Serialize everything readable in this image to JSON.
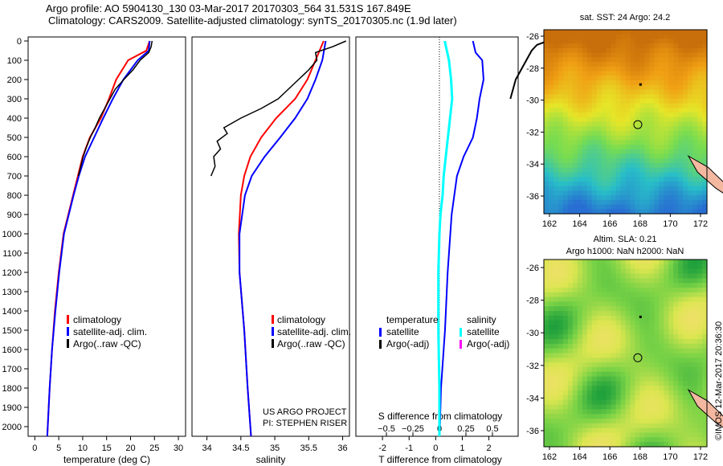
{
  "title_line1": "Argo profile: AO 5904130_130 03-Mar-2017 20170303_564 31.531S 167.849E",
  "title_line2": "Climatology: CARS2009. Satellite-adjusted climatology: synTS_20170305.nc (1.9d later)",
  "credit": "©IMOS 12-Mar-2017 20:36:30",
  "colors": {
    "climatology": "#ff0000",
    "satellite": "#0000ff",
    "argo": "#000000",
    "sal_sat": "#00ffff",
    "sal_argo": "#ff00ff"
  },
  "chart_data": [
    {
      "type": "line",
      "name": "temperature",
      "xlabel": "temperature (deg C)",
      "xlim": [
        -1.4,
        31.5
      ],
      "ylim": [
        2050,
        0
      ],
      "xticks": [
        0,
        5,
        10,
        15,
        20,
        25,
        30
      ],
      "yticks": [
        0,
        100,
        200,
        300,
        400,
        500,
        600,
        700,
        800,
        900,
        1000,
        1100,
        1200,
        1300,
        1400,
        1500,
        1600,
        1700,
        1800,
        1900,
        2000
      ],
      "legend": [
        "climatology",
        "satellite-adj. clim.",
        "Argo(..raw -QC)"
      ],
      "series": [
        {
          "name": "climatology",
          "depth": [
            0,
            50,
            100,
            200,
            300,
            400,
            500,
            600,
            700,
            800,
            900,
            1000,
            1200,
            1400,
            1600,
            1800,
            2050
          ],
          "values": [
            24,
            23.3,
            19.5,
            17,
            15.5,
            13.8,
            11.5,
            10,
            9,
            8,
            7,
            6,
            5,
            4.2,
            3.6,
            3.1,
            2.6
          ]
        },
        {
          "name": "satellite",
          "depth": [
            0,
            50,
            100,
            200,
            300,
            400,
            500,
            600,
            700,
            800,
            900,
            1000,
            1200,
            1400,
            1600,
            1800,
            2050
          ],
          "values": [
            24,
            23.8,
            21.5,
            18.5,
            16.3,
            14.3,
            12.4,
            10.5,
            9.2,
            8.1,
            7.1,
            6.1,
            5.1,
            4.3,
            3.6,
            3.1,
            2.6
          ]
        },
        {
          "name": "argo",
          "depth": [
            0,
            30,
            60,
            100,
            150,
            200,
            250,
            300,
            350,
            400,
            450,
            500,
            550,
            600,
            650,
            700
          ],
          "values": [
            24.5,
            24.3,
            23.8,
            22,
            20.5,
            18.6,
            16.8,
            15.7,
            14.6,
            13.5,
            12.6,
            11.6,
            10.8,
            10.1,
            9.6,
            9.1
          ]
        }
      ]
    },
    {
      "type": "line",
      "name": "salinity",
      "xlabel": "salinity",
      "xlim": [
        33.78,
        36.1
      ],
      "ylim": [
        2050,
        0
      ],
      "xticks": [
        34,
        34.5,
        35,
        35.5,
        36
      ],
      "legend": [
        "climatology",
        "satellite-adj. clim.",
        "Argo(..raw -QC)"
      ],
      "annotation": [
        "US ARGO PROJECT",
        "PI: STEPHEN RISER"
      ],
      "series": [
        {
          "name": "climatology",
          "depth": [
            0,
            100,
            200,
            300,
            400,
            500,
            600,
            700,
            800,
            1000,
            1200,
            1500,
            1800,
            2050
          ],
          "values": [
            35.72,
            35.6,
            35.48,
            35.3,
            35.02,
            34.8,
            34.64,
            34.55,
            34.5,
            34.47,
            34.48,
            34.55,
            34.6,
            34.65
          ]
        },
        {
          "name": "satellite",
          "depth": [
            0,
            100,
            200,
            300,
            400,
            500,
            600,
            700,
            800,
            1000,
            1200,
            1500,
            1800,
            2050
          ],
          "values": [
            35.75,
            35.7,
            35.6,
            35.48,
            35.3,
            35.08,
            34.85,
            34.66,
            34.56,
            34.48,
            34.48,
            34.55,
            34.6,
            34.65
          ]
        },
        {
          "name": "argo",
          "depth": [
            0,
            30,
            60,
            100,
            150,
            200,
            250,
            300,
            350,
            400,
            450,
            480,
            520,
            560,
            600,
            650,
            700
          ],
          "values": [
            36.05,
            35.85,
            35.6,
            35.62,
            35.5,
            35.35,
            35.2,
            35.05,
            34.8,
            34.5,
            34.25,
            34.3,
            34.15,
            34.2,
            34.1,
            34.12,
            34.06
          ]
        }
      ]
    },
    {
      "type": "line",
      "name": "difference",
      "xlabel": "T difference from climatology",
      "xlabel2": "S difference from climatology",
      "xlim": [
        -3.0,
        3.1
      ],
      "ylim": [
        2050,
        0
      ],
      "xticks": [
        -2,
        -1,
        0,
        1,
        2
      ],
      "xticks_s": [
        -0.5,
        -0.25,
        0,
        0.25,
        0.5
      ],
      "legend_headers": [
        "temperature",
        "salinity"
      ],
      "legend": [
        "satellite",
        "Argo(-adj)",
        "satellite",
        "Argo(-adj)"
      ],
      "series": [
        {
          "name": "T satellite",
          "depth": [
            0,
            60,
            100,
            200,
            300,
            400,
            500,
            600,
            700,
            900,
            1200,
            1500,
            1800,
            2050
          ],
          "values": [
            1.4,
            1.5,
            1.75,
            1.8,
            1.65,
            1.55,
            1.4,
            1.05,
            0.8,
            0.6,
            0.45,
            0.35,
            0.2,
            0.15
          ]
        },
        {
          "name": "T argo",
          "depth": [
            0,
            20,
            50,
            100,
            150,
            200,
            250,
            300
          ],
          "values": [
            3.0,
            2.6,
            2.4,
            2.2,
            2.0,
            1.8,
            1.7,
            1.6
          ]
        },
        {
          "name": "S satellite",
          "depth": [
            0,
            100,
            200,
            300,
            400,
            500,
            600,
            700,
            800,
            900,
            1000,
            1200,
            1500,
            1800,
            2050
          ],
          "values": [
            0.05,
            0.09,
            0.11,
            0.12,
            0.1,
            0.08,
            0.06,
            0.04,
            0.03,
            0.01,
            0,
            -0.01,
            -0.01,
            0,
            0
          ]
        }
      ]
    }
  ],
  "map_sst": {
    "title": "sat. SST: 24 Argo: 24.2",
    "lat_ticks": [
      -26,
      -28,
      -30,
      -32,
      -34,
      -36
    ],
    "lon_ticks": [
      162,
      164,
      166,
      168,
      170,
      172
    ]
  },
  "map_sla": {
    "title1": "Altim. SLA: 0.21",
    "title2": "Argo h1000: NaN h2000: NaN",
    "lat_ticks": [
      -26,
      -28,
      -30,
      -32,
      -34,
      -36
    ],
    "lon_ticks": [
      162,
      164,
      166,
      168,
      170,
      172
    ]
  },
  "argo_pos": {
    "lat": -31.531,
    "lon": 167.849
  }
}
